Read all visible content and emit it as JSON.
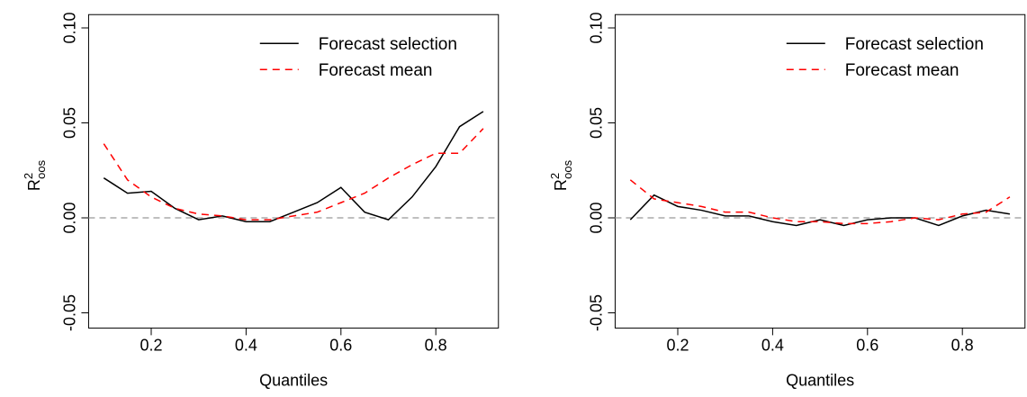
{
  "chart_data": [
    {
      "type": "line",
      "xlabel": "Quantiles",
      "ylabel": "R",
      "ylabel_sup": "2",
      "ylabel_sub": "oos",
      "x": [
        0.1,
        0.15,
        0.2,
        0.25,
        0.3,
        0.35,
        0.4,
        0.45,
        0.5,
        0.55,
        0.6,
        0.65,
        0.7,
        0.75,
        0.8,
        0.85,
        0.9
      ],
      "series": [
        {
          "name": "Forecast selection",
          "color": "#000000",
          "linestyle": "solid",
          "values": [
            0.021,
            0.013,
            0.014,
            0.005,
            -0.001,
            0.001,
            -0.002,
            -0.002,
            0.003,
            0.008,
            0.016,
            0.003,
            -0.001,
            0.011,
            0.027,
            0.048,
            0.056
          ]
        },
        {
          "name": "Forecast mean",
          "color": "#ff0000",
          "linestyle": "dashed",
          "values": [
            0.039,
            0.02,
            0.011,
            0.005,
            0.002,
            0.001,
            -0.001,
            -0.001,
            0.001,
            0.003,
            0.008,
            0.013,
            0.021,
            0.028,
            0.034,
            0.034,
            0.047
          ]
        }
      ],
      "xlim": [
        0.068,
        0.932
      ],
      "xticks": [
        0.2,
        0.4,
        0.6,
        0.8
      ],
      "ylim": [
        -0.058,
        0.107
      ],
      "yticks": [
        -0.05,
        {
          "value": 0,
          "label": "0.00"
        },
        0.05,
        {
          "value": 0.1,
          "label": "0.10"
        }
      ],
      "hline": 0,
      "legend": "top-right"
    },
    {
      "type": "line",
      "xlabel": "Quantiles",
      "ylabel": "R",
      "ylabel_sup": "2",
      "ylabel_sub": "oos",
      "x": [
        0.1,
        0.15,
        0.2,
        0.25,
        0.3,
        0.35,
        0.4,
        0.45,
        0.5,
        0.55,
        0.6,
        0.65,
        0.7,
        0.75,
        0.8,
        0.85,
        0.9
      ],
      "series": [
        {
          "name": "Forecast selection",
          "color": "#000000",
          "linestyle": "solid",
          "values": [
            -0.001,
            0.012,
            0.006,
            0.004,
            0.001,
            0.001,
            -0.002,
            -0.004,
            -0.001,
            -0.004,
            -0.001,
            0,
            0,
            -0.004,
            0.001,
            0.004,
            0.002
          ]
        },
        {
          "name": "Forecast mean",
          "color": "#ff0000",
          "linestyle": "dashed",
          "values": [
            0.02,
            0.01,
            0.008,
            0.006,
            0.003,
            0.003,
            0.0,
            -0.002,
            -0.002,
            -0.003,
            -0.003,
            -0.002,
            0,
            -0.001,
            0.002,
            0.003,
            0.011
          ]
        }
      ],
      "xlim": [
        0.068,
        0.932
      ],
      "xticks": [
        0.2,
        0.4,
        0.6,
        0.8
      ],
      "ylim": [
        -0.058,
        0.107
      ],
      "yticks": [
        -0.05,
        {
          "value": 0,
          "label": "0.00"
        },
        0.05,
        {
          "value": 0.1,
          "label": "0.10"
        }
      ],
      "hline": 0,
      "legend": "top-right"
    }
  ]
}
